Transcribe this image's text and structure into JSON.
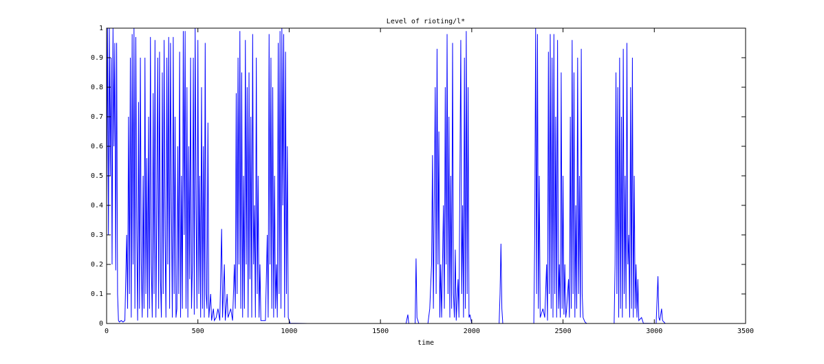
{
  "chart_data": {
    "type": "line",
    "title": "Level of rioting/l*",
    "xlabel": "time",
    "color": "#0000ff",
    "xlim": [
      0,
      3500
    ],
    "xticks": [
      0,
      500,
      1000,
      1500,
      2000,
      2500,
      3000,
      3500
    ],
    "ylim": [
      0,
      1
    ],
    "yticks": [
      0,
      0.1,
      0.2,
      0.3,
      0.4,
      0.5,
      0.6,
      0.7,
      0.8,
      0.9,
      1
    ],
    "x": [
      0,
      5,
      10,
      15,
      20,
      25,
      30,
      35,
      40,
      45,
      50,
      55,
      60,
      65,
      70,
      80,
      90,
      100,
      110,
      115,
      120,
      125,
      130,
      135,
      140,
      145,
      150,
      155,
      160,
      165,
      170,
      175,
      180,
      185,
      190,
      195,
      200,
      205,
      210,
      215,
      220,
      225,
      230,
      235,
      240,
      245,
      250,
      255,
      260,
      265,
      270,
      275,
      280,
      285,
      290,
      295,
      300,
      305,
      310,
      315,
      320,
      325,
      330,
      335,
      340,
      345,
      350,
      355,
      360,
      365,
      370,
      375,
      380,
      385,
      390,
      395,
      400,
      405,
      410,
      415,
      420,
      425,
      430,
      435,
      440,
      445,
      450,
      455,
      460,
      465,
      470,
      475,
      480,
      485,
      490,
      495,
      500,
      505,
      510,
      515,
      520,
      525,
      530,
      535,
      540,
      545,
      550,
      555,
      560,
      570,
      575,
      585,
      590,
      600,
      610,
      620,
      630,
      635,
      645,
      650,
      660,
      665,
      680,
      690,
      700,
      705,
      710,
      715,
      720,
      725,
      730,
      735,
      740,
      745,
      750,
      755,
      760,
      765,
      770,
      775,
      780,
      785,
      790,
      795,
      800,
      805,
      810,
      815,
      820,
      825,
      830,
      835,
      840,
      845,
      855,
      870,
      880,
      885,
      890,
      895,
      900,
      905,
      910,
      915,
      920,
      925,
      930,
      935,
      940,
      945,
      950,
      955,
      960,
      965,
      970,
      975,
      980,
      985,
      990,
      995,
      1005,
      1100,
      1640,
      1650,
      1655,
      1690,
      1695,
      1700,
      1710,
      1760,
      1770,
      1780,
      1785,
      1790,
      1800,
      1805,
      1810,
      1815,
      1820,
      1825,
      1830,
      1835,
      1845,
      1850,
      1855,
      1860,
      1865,
      1870,
      1875,
      1880,
      1885,
      1890,
      1895,
      1900,
      1905,
      1910,
      1915,
      1925,
      1930,
      1940,
      1945,
      1950,
      1955,
      1960,
      1965,
      1970,
      1975,
      1980,
      1985,
      1990,
      2000,
      2150,
      2155,
      2160,
      2165,
      2170,
      2340,
      2345,
      2350,
      2355,
      2360,
      2365,
      2370,
      2375,
      2390,
      2400,
      2410,
      2415,
      2420,
      2425,
      2430,
      2435,
      2440,
      2445,
      2450,
      2455,
      2460,
      2465,
      2470,
      2475,
      2480,
      2485,
      2490,
      2495,
      2500,
      2505,
      2510,
      2515,
      2520,
      2530,
      2535,
      2540,
      2545,
      2550,
      2555,
      2560,
      2565,
      2570,
      2575,
      2580,
      2585,
      2590,
      2595,
      2600,
      2605,
      2610,
      2620,
      2630,
      2780,
      2785,
      2790,
      2795,
      2800,
      2805,
      2810,
      2815,
      2820,
      2825,
      2830,
      2835,
      2840,
      2845,
      2850,
      2855,
      2860,
      2865,
      2870,
      2875,
      2880,
      2885,
      2890,
      2895,
      2900,
      2905,
      2910,
      2915,
      2930,
      2940,
      3010,
      3015,
      3020,
      3025,
      3030,
      3040,
      3045,
      3060,
      3200
    ],
    "values": [
      0.4,
      1,
      0.3,
      1,
      0.5,
      0.9,
      0.2,
      1,
      0.6,
      0.95,
      0.18,
      0.95,
      0.1,
      0.01,
      0.005,
      0.01,
      0.005,
      0.01,
      0.3,
      0.05,
      0.7,
      0.1,
      0.9,
      0.02,
      0.98,
      0.2,
      1,
      0.05,
      0.97,
      0.3,
      0.01,
      0.75,
      0.05,
      0.9,
      0.2,
      0.02,
      0.5,
      0.05,
      0.9,
      0.1,
      0.56,
      0.02,
      0.7,
      0.05,
      0.97,
      0.2,
      0.02,
      0.78,
      0.1,
      0.96,
      0.02,
      0.4,
      0.9,
      0.05,
      0.92,
      0.15,
      0.02,
      0.85,
      0.1,
      0.96,
      0.3,
      0.02,
      0.9,
      0.2,
      0.97,
      0.05,
      0.95,
      0.4,
      0.02,
      0.97,
      0.1,
      0.7,
      0.02,
      0.05,
      0.6,
      0.1,
      0.92,
      0.02,
      0.5,
      0.05,
      0.99,
      0.3,
      0.99,
      0.05,
      0.8,
      0.02,
      0.6,
      0.15,
      0.9,
      0.05,
      0.2,
      0.9,
      0.03,
      1,
      0.4,
      0.05,
      0.96,
      0.1,
      0.5,
      0.02,
      0.8,
      0.05,
      0.6,
      0.02,
      0.95,
      0.1,
      0.05,
      0.68,
      0.02,
      0.1,
      0.01,
      0.05,
      0.01,
      0.02,
      0.05,
      0.01,
      0.32,
      0.02,
      0.2,
      0.01,
      0.1,
      0.02,
      0.05,
      0.01,
      0.2,
      0.05,
      0.78,
      0.1,
      0.9,
      0.2,
      0.99,
      0.05,
      0.85,
      0.02,
      0.5,
      0.05,
      0.96,
      0.2,
      0.8,
      0.02,
      0.85,
      0.15,
      0.7,
      0.02,
      0.98,
      0.2,
      0.4,
      0.02,
      0.9,
      0.1,
      0.5,
      0.02,
      0.2,
      0.01,
      0.01,
      0.01,
      0.3,
      0.02,
      0.98,
      0.2,
      0.9,
      0.05,
      0.8,
      0.02,
      0.5,
      0.05,
      0.2,
      0.02,
      0.95,
      0.1,
      0.99,
      0.05,
      1,
      0.4,
      0.98,
      0.02,
      0.92,
      0.1,
      0.6,
      0.02,
      0.001,
      0,
      0,
      0.03,
      0,
      0,
      0.22,
      0.02,
      0,
      0,
      0.05,
      0.2,
      0.57,
      0.05,
      0.8,
      0.1,
      0.93,
      0.2,
      0.65,
      0.02,
      0.2,
      0.02,
      0.4,
      0.05,
      0.8,
      0.2,
      0.98,
      0.1,
      0.7,
      0.02,
      0.5,
      0.05,
      0.95,
      0.1,
      0.02,
      0.25,
      0.01,
      0.15,
      0.02,
      0.96,
      0.1,
      0.4,
      0.02,
      0.9,
      0.05,
      0.99,
      0.1,
      0.8,
      0.02,
      0.03,
      0,
      0,
      0.1,
      0.27,
      0.05,
      0,
      0,
      0.3,
      1,
      0.1,
      0.98,
      0.05,
      0.5,
      0.02,
      0.05,
      0.02,
      0.2,
      0.01,
      0.92,
      0.1,
      0.98,
      0.05,
      0.9,
      0.02,
      0.98,
      0.1,
      0.7,
      0.02,
      0.96,
      0.05,
      0.2,
      0.02,
      0.85,
      0.05,
      0.5,
      0.03,
      0.2,
      0.02,
      0.05,
      0.15,
      0.02,
      0.7,
      0.05,
      0.96,
      0.1,
      0.85,
      0.02,
      0.4,
      0.05,
      0.9,
      0.1,
      0.5,
      0.02,
      0.93,
      0.1,
      0.02,
      0.005,
      0,
      0,
      0.2,
      0.85,
      0.1,
      0.8,
      0.02,
      0.9,
      0.05,
      0.7,
      0.02,
      0.93,
      0.1,
      0.5,
      0.05,
      0.95,
      0.2,
      0.3,
      0.02,
      0.8,
      0.05,
      0.9,
      0.02,
      0.5,
      0.05,
      0.2,
      0.02,
      0.15,
      0.01,
      0.02,
      0.001,
      0,
      0.08,
      0.16,
      0.02,
      0.01,
      0.05,
      0.01,
      0,
      0
    ]
  }
}
